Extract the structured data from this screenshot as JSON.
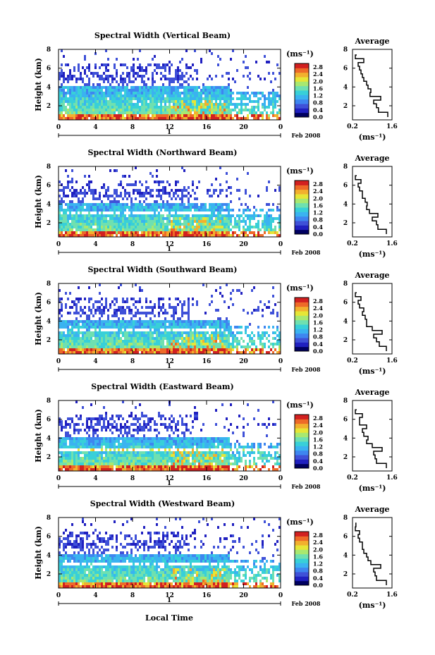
{
  "panels": [
    {
      "title": "Spectral Width (Vertical Beam)"
    },
    {
      "title": "Spectral Width (Northward Beam)"
    },
    {
      "title": "Spectral Width (Southward Beam)"
    },
    {
      "title": "Spectral Width (Eastward Beam)"
    },
    {
      "title": "Spectral Width (Westward Beam)"
    }
  ],
  "labels": {
    "ylabel": "Height (km)",
    "xlabel": "Local Time",
    "colorbar_unit": "(ms⁻¹)",
    "date": "Feb 2008",
    "day": "1",
    "avg_title": "Average",
    "avg_unit": "(ms⁻¹)"
  },
  "chart_data": {
    "type": "heatmap",
    "x_ticks": [
      "0",
      "4",
      "8",
      "12",
      "16",
      "20",
      "0"
    ],
    "xlim": [
      0,
      24
    ],
    "y_ticks": [
      "2",
      "4",
      "6",
      "8"
    ],
    "ylim": [
      0.5,
      8
    ],
    "colorbar_ticks": [
      "0.0",
      "0.4",
      "0.8",
      "1.2",
      "1.6",
      "2.0",
      "2.4",
      "2.8"
    ],
    "colorbar_range": [
      0.0,
      3.0
    ],
    "avg_x_ticks": [
      "0.2",
      "1.6"
    ],
    "avg_xlim": [
      0.2,
      1.6
    ],
    "colors": [
      "#000060",
      "#2020c0",
      "#3f51d8",
      "#3e86f0",
      "#3ab3f0",
      "#38d0d8",
      "#6fe0b0",
      "#a8e870",
      "#e6e636",
      "#f2b02e",
      "#ee6a28",
      "#d22020"
    ],
    "avg_profiles": [
      {
        "beam": "Vertical",
        "height": [
          0.8,
          1.3,
          1.8,
          2.2,
          2.6,
          3.0,
          3.4,
          3.8,
          4.2,
          4.6,
          5.0,
          5.4,
          5.8,
          6.2,
          6.6,
          7.0,
          7.4
        ],
        "width": [
          1.45,
          1.12,
          1.05,
          0.95,
          1.2,
          0.82,
          0.85,
          0.75,
          0.7,
          0.6,
          0.55,
          0.5,
          0.45,
          0.4,
          0.6,
          0.3,
          0.35
        ]
      },
      {
        "beam": "Northward",
        "height": [
          0.8,
          1.3,
          1.8,
          2.2,
          2.6,
          3.0,
          3.4,
          3.8,
          4.2,
          4.6,
          5.0,
          5.4,
          5.8,
          6.2,
          6.6,
          7.0
        ],
        "width": [
          1.4,
          1.1,
          1.05,
          0.9,
          1.1,
          0.8,
          0.7,
          0.72,
          0.65,
          0.55,
          0.55,
          0.45,
          0.4,
          0.5,
          0.3,
          0.35
        ]
      },
      {
        "beam": "Southward",
        "height": [
          0.8,
          1.3,
          1.8,
          2.2,
          2.6,
          3.0,
          3.4,
          3.8,
          4.2,
          4.6,
          5.0,
          5.4,
          5.8,
          6.2,
          6.6,
          7.0
        ],
        "width": [
          1.4,
          1.15,
          1.05,
          0.95,
          1.25,
          0.9,
          0.7,
          0.7,
          0.65,
          0.55,
          0.6,
          0.45,
          0.4,
          0.5,
          0.3,
          0.35
        ]
      },
      {
        "beam": "Eastward",
        "height": [
          0.8,
          1.3,
          1.8,
          2.2,
          2.6,
          3.0,
          3.4,
          3.8,
          4.2,
          4.6,
          5.0,
          5.4,
          5.8,
          6.2,
          6.6,
          7.0
        ],
        "width": [
          1.4,
          1.05,
          1.0,
          0.95,
          1.25,
          0.9,
          0.7,
          0.75,
          0.6,
          0.55,
          0.7,
          0.45,
          0.45,
          0.55,
          0.3,
          0.35
        ]
      },
      {
        "beam": "Westward",
        "height": [
          0.8,
          1.3,
          1.8,
          2.2,
          2.6,
          3.0,
          3.4,
          3.8,
          4.2,
          4.6,
          5.0,
          5.4,
          5.8,
          6.2,
          6.6,
          7.0,
          7.4
        ],
        "width": [
          1.4,
          1.05,
          1.0,
          0.95,
          1.2,
          0.85,
          0.75,
          0.7,
          0.6,
          0.55,
          0.55,
          0.45,
          0.4,
          0.45,
          0.3,
          0.32,
          0.3
        ]
      }
    ]
  }
}
